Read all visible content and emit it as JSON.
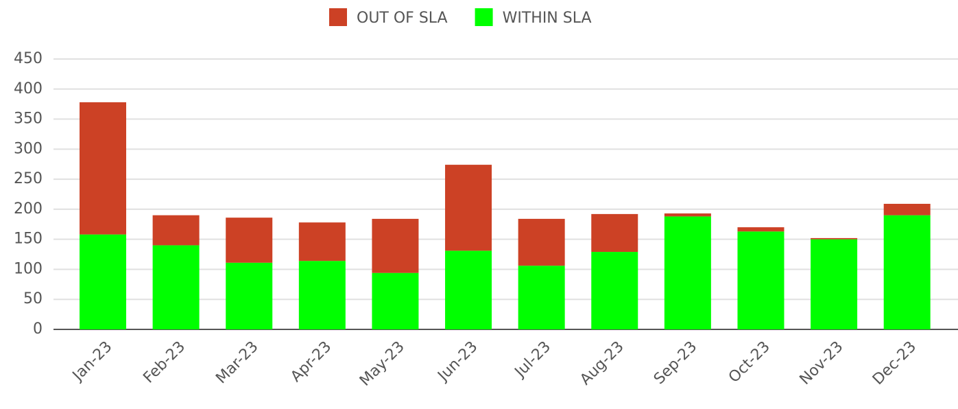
{
  "chart_data": {
    "type": "stacked_bar",
    "categories": [
      "Jan-23",
      "Feb-23",
      "Mar-23",
      "Apr-23",
      "May-23",
      "Jun-23",
      "Jul-23",
      "Aug-23",
      "Sep-23",
      "Oct-23",
      "Nov-23",
      "Dec-23"
    ],
    "series": [
      {
        "name": "OUT OF SLA",
        "color": "#cc4125",
        "values": [
          220,
          50,
          75,
          64,
          90,
          143,
          78,
          63,
          5,
          7,
          2,
          19
        ]
      },
      {
        "name": "WITHIN SLA",
        "color": "#00ff00",
        "values": [
          158,
          140,
          111,
          114,
          94,
          131,
          106,
          129,
          188,
          163,
          150,
          190
        ]
      }
    ],
    "ylim": [
      0,
      450
    ],
    "yticks": [
      0,
      50,
      100,
      150,
      200,
      250,
      300,
      350,
      400,
      450
    ],
    "grid": true,
    "legend": "top"
  }
}
